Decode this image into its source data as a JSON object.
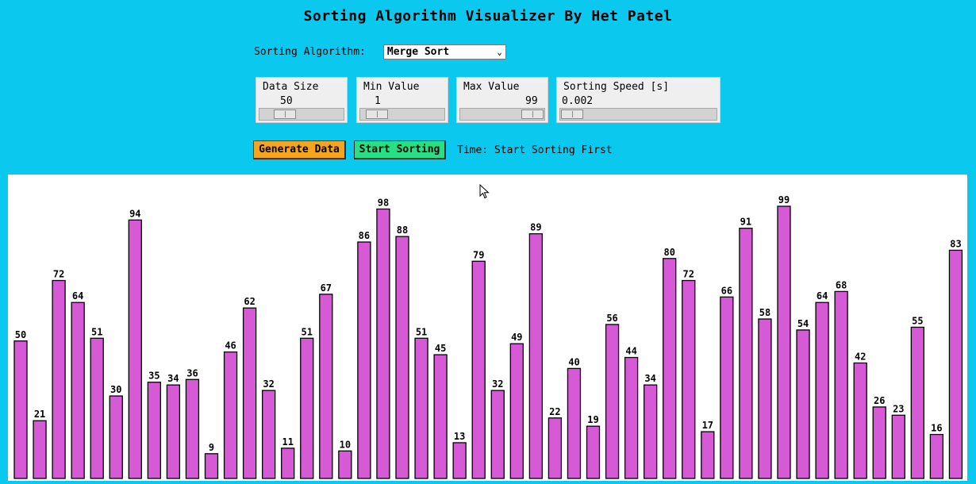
{
  "title": "Sorting Algorithm Visualizer By Het Patel",
  "algorithm": {
    "label": "Sorting Algorithm:",
    "selected": "Merge Sort"
  },
  "controls": {
    "data_size": {
      "label": "Data Size",
      "value": "50"
    },
    "min_value": {
      "label": "Min Value",
      "value": "1"
    },
    "max_value": {
      "label": "Max Value",
      "value": "99"
    },
    "speed": {
      "label": "Sorting Speed [s]",
      "value": "0.002"
    }
  },
  "buttons": {
    "generate": "Generate Data",
    "start": "Start Sorting"
  },
  "time_text": "Time: Start Sorting First",
  "colors": {
    "background": "#0ac8ee",
    "bar": "#d65ad6",
    "generate": "#f5a41e",
    "start": "#26e083"
  },
  "chart_data": {
    "type": "bar",
    "values": [
      50,
      21,
      72,
      64,
      51,
      30,
      94,
      35,
      34,
      36,
      9,
      46,
      62,
      32,
      11,
      51,
      67,
      10,
      86,
      98,
      88,
      51,
      45,
      13,
      79,
      32,
      49,
      89,
      22,
      40,
      19,
      56,
      44,
      34,
      80,
      72,
      17,
      66,
      91,
      58,
      99,
      54,
      64,
      68,
      42,
      26,
      23,
      55,
      16,
      83
    ],
    "ylim": [
      0,
      100
    ]
  }
}
